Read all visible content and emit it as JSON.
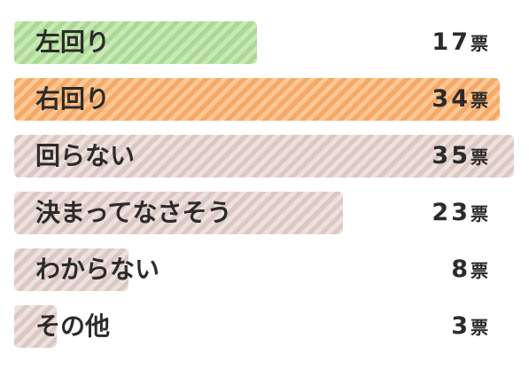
{
  "chart_data": {
    "type": "bar",
    "orientation": "horizontal",
    "categories": [
      "左回り",
      "右回り",
      "回らない",
      "決まってなさそう",
      "わからない",
      "その他"
    ],
    "values": [
      17,
      34,
      35,
      23,
      8,
      3
    ],
    "unit": "票",
    "xlim": [
      0,
      35
    ],
    "grid": false,
    "legend": "none",
    "colors": {
      "左回り": "#a9d992",
      "右回り": "#f6a866",
      "default": "#dcc8c2"
    },
    "stripe_colors": {
      "左回り": "#c9e8b8",
      "右回り": "#fbc795",
      "default": "#ede1dd"
    }
  }
}
